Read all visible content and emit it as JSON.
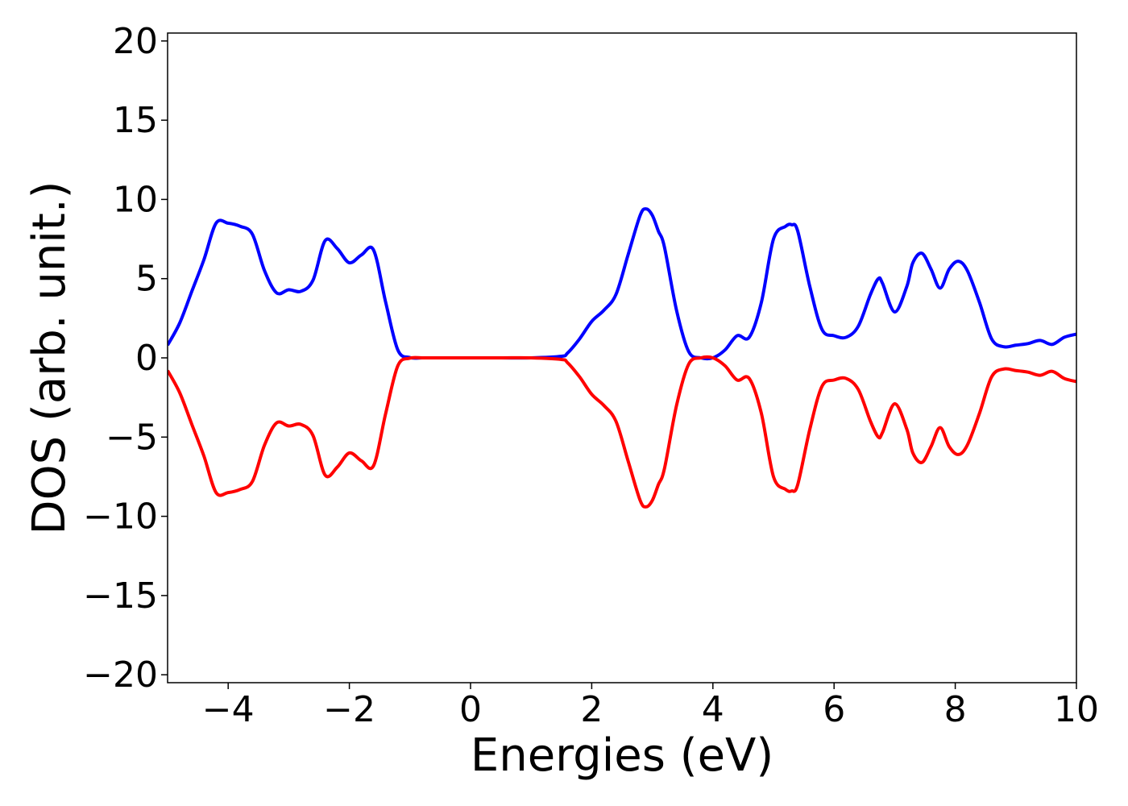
{
  "chart_data": {
    "type": "line",
    "title": "",
    "xlabel": "Energies (eV)",
    "ylabel": "DOS (arb. unit.)",
    "xlim": [
      -5,
      10
    ],
    "ylim": [
      -20.5,
      20.5
    ],
    "x_ticks": [
      -4,
      -2,
      0,
      2,
      4,
      6,
      8,
      10
    ],
    "x_tick_labels": [
      "−4",
      "−2",
      "0",
      "2",
      "4",
      "6",
      "8",
      "10"
    ],
    "y_ticks": [
      20,
      15,
      10,
      5,
      0,
      -5,
      -10,
      -15,
      -20
    ],
    "y_tick_labels": [
      "20",
      "15",
      "10",
      "5",
      "0",
      "−5",
      "−10",
      "−15",
      "−20"
    ],
    "grid": false,
    "legend": "none",
    "series": [
      {
        "color": "#0000ff",
        "x": [
          -5.0,
          -4.8,
          -4.6,
          -4.4,
          -4.2,
          -4.0,
          -3.8,
          -3.6,
          -3.4,
          -3.2,
          -3.0,
          -2.8,
          -2.6,
          -2.4,
          -2.2,
          -2.0,
          -1.8,
          -1.6,
          -1.4,
          -1.2,
          -1.0,
          -0.8,
          -0.6,
          -0.4,
          0.0,
          0.5,
          1.0,
          1.5,
          1.6,
          1.8,
          2.0,
          2.2,
          2.4,
          2.6,
          2.8,
          2.9,
          3.0,
          3.1,
          3.2,
          3.4,
          3.6,
          3.8,
          4.0,
          4.2,
          4.4,
          4.6,
          4.8,
          5.0,
          5.2,
          5.3,
          5.4,
          5.6,
          5.8,
          6.0,
          6.2,
          6.4,
          6.6,
          6.73,
          6.8,
          7.0,
          7.2,
          7.3,
          7.45,
          7.6,
          7.75,
          7.9,
          8.05,
          8.2,
          8.4,
          8.6,
          8.8,
          9.0,
          9.2,
          9.4,
          9.6,
          9.8,
          10.0
        ],
        "values": [
          0.8,
          2.2,
          4.2,
          6.2,
          8.5,
          8.5,
          8.3,
          7.8,
          5.5,
          4.1,
          4.3,
          4.2,
          4.9,
          7.4,
          6.9,
          6.0,
          6.5,
          6.8,
          3.5,
          0.5,
          0.02,
          0.0,
          0.0,
          0.0,
          0.0,
          0.0,
          0.0,
          0.1,
          0.3,
          1.2,
          2.3,
          3.0,
          4.0,
          6.5,
          9.0,
          9.4,
          9.0,
          8.0,
          7.0,
          3.0,
          0.4,
          0.0,
          0.0,
          0.5,
          1.4,
          1.3,
          3.5,
          7.5,
          8.3,
          8.4,
          8.0,
          4.5,
          1.8,
          1.4,
          1.3,
          2.0,
          4.0,
          5.0,
          4.7,
          2.9,
          4.5,
          6.0,
          6.6,
          5.6,
          4.4,
          5.6,
          6.1,
          5.5,
          3.5,
          1.2,
          0.7,
          0.8,
          0.9,
          1.1,
          0.85,
          1.3,
          1.5
        ]
      },
      {
        "color": "#ff0000",
        "x": [
          -5.0,
          -4.8,
          -4.6,
          -4.4,
          -4.2,
          -4.0,
          -3.8,
          -3.6,
          -3.4,
          -3.2,
          -3.0,
          -2.8,
          -2.6,
          -2.4,
          -2.2,
          -2.0,
          -1.8,
          -1.6,
          -1.4,
          -1.2,
          -1.0,
          -0.8,
          -0.6,
          -0.4,
          0.0,
          0.5,
          1.0,
          1.5,
          1.6,
          1.8,
          2.0,
          2.2,
          2.4,
          2.6,
          2.8,
          2.9,
          3.0,
          3.1,
          3.2,
          3.4,
          3.6,
          3.8,
          4.0,
          4.2,
          4.4,
          4.6,
          4.8,
          5.0,
          5.2,
          5.3,
          5.4,
          5.6,
          5.8,
          6.0,
          6.2,
          6.4,
          6.6,
          6.73,
          6.8,
          7.0,
          7.2,
          7.3,
          7.45,
          7.6,
          7.75,
          7.9,
          8.05,
          8.2,
          8.4,
          8.6,
          8.8,
          9.0,
          9.2,
          9.4,
          9.6,
          9.8,
          10.0
        ],
        "values": [
          -0.8,
          -2.2,
          -4.2,
          -6.2,
          -8.5,
          -8.5,
          -8.3,
          -7.8,
          -5.5,
          -4.1,
          -4.3,
          -4.2,
          -4.9,
          -7.4,
          -6.9,
          -6.0,
          -6.5,
          -6.8,
          -3.5,
          -0.5,
          -0.02,
          0.0,
          0.0,
          0.0,
          0.0,
          0.0,
          0.0,
          -0.1,
          -0.3,
          -1.2,
          -2.3,
          -3.0,
          -4.0,
          -6.5,
          -9.0,
          -9.4,
          -9.0,
          -8.0,
          -7.0,
          -3.0,
          -0.4,
          0.0,
          0.0,
          -0.5,
          -1.4,
          -1.3,
          -3.5,
          -7.5,
          -8.3,
          -8.4,
          -8.0,
          -4.5,
          -1.8,
          -1.4,
          -1.3,
          -2.0,
          -4.0,
          -5.0,
          -4.7,
          -2.9,
          -4.5,
          -6.0,
          -6.6,
          -5.6,
          -4.4,
          -5.6,
          -6.1,
          -5.5,
          -3.5,
          -1.2,
          -0.7,
          -0.8,
          -0.9,
          -1.1,
          -0.85,
          -1.3,
          -1.5
        ]
      }
    ]
  }
}
